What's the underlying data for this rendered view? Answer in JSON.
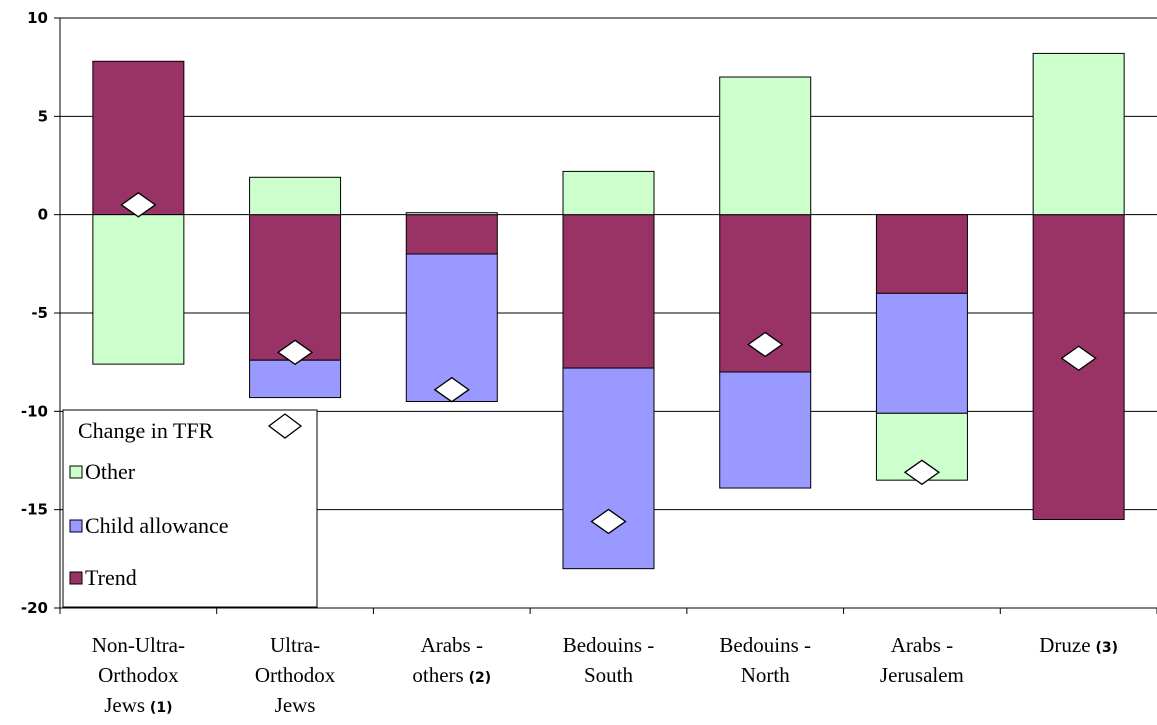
{
  "chart_data": {
    "type": "bar",
    "stacked": true,
    "title": "",
    "xlabel": "",
    "ylabel": "",
    "ylim": [
      -20,
      10
    ],
    "yticks": [
      10,
      5,
      0,
      -5,
      -10,
      -15,
      -20
    ],
    "grid": true,
    "legend_position": "bottom-left",
    "categories": [
      {
        "lines": [
          "Non-Ultra-",
          "Orthodox",
          "Jews"
        ],
        "note": "(1)"
      },
      {
        "lines": [
          "Ultra-",
          "Orthodox",
          "Jews"
        ],
        "note": ""
      },
      {
        "lines": [
          "Arabs -",
          "others"
        ],
        "note": "(2)"
      },
      {
        "lines": [
          "Bedouins -",
          "South"
        ],
        "note": ""
      },
      {
        "lines": [
          "Bedouins -",
          "North"
        ],
        "note": ""
      },
      {
        "lines": [
          "Arabs -",
          "Jerusalem"
        ],
        "note": ""
      },
      {
        "lines": [
          "Druze"
        ],
        "note": "(3)"
      }
    ],
    "series": [
      {
        "name": "Trend",
        "color": "#993366",
        "values": [
          7.8,
          -7.4,
          -2.0,
          -7.8,
          -8.0,
          -4.0,
          -15.5
        ]
      },
      {
        "name": "Child allowance",
        "color": "#9999ff",
        "values": [
          0.0,
          -1.9,
          -7.5,
          -10.2,
          -5.9,
          -6.1,
          0.0
        ]
      },
      {
        "name": "Other",
        "color": "#ccffcc",
        "values": [
          -7.6,
          1.9,
          0.1,
          2.2,
          7.0,
          -3.4,
          8.2
        ]
      }
    ],
    "change_in_tfr": {
      "name": "Change in TFR",
      "values": [
        0.5,
        -7.0,
        -8.9,
        -15.6,
        -6.6,
        -13.1,
        -7.3
      ]
    }
  }
}
